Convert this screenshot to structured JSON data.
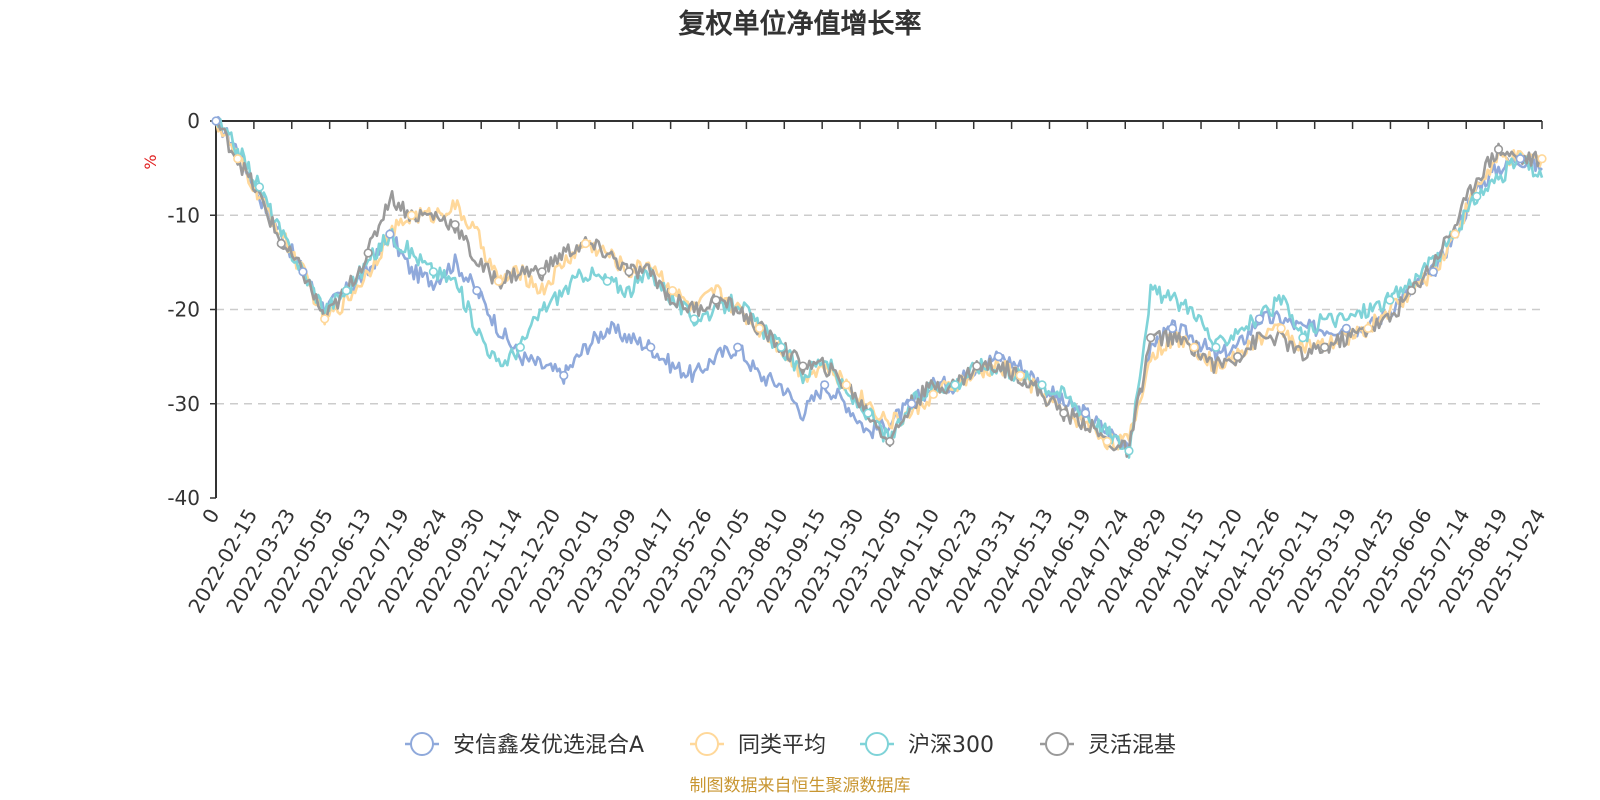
{
  "chart_data": {
    "type": "line",
    "title": "复权单位净值增长率",
    "ylabel": "%",
    "xlabel": "",
    "ylim": [
      -40,
      0
    ],
    "yticks": [
      0,
      -10,
      -20,
      -30,
      -40
    ],
    "ytick_labels": [
      "0",
      "-10",
      "-20",
      "-30",
      "-40"
    ],
    "grid": true,
    "legend_position": "bottom",
    "x_tick_labels": [
      "0",
      "2022-02-15",
      "2022-03-23",
      "2022-05-05",
      "2022-06-13",
      "2022-07-19",
      "2022-08-24",
      "2022-09-30",
      "2022-11-14",
      "2022-12-20",
      "2023-02-01",
      "2023-03-09",
      "2023-04-17",
      "2023-05-26",
      "2023-07-05",
      "2023-08-10",
      "2023-09-15",
      "2023-10-30",
      "2023-12-05",
      "2024-01-10",
      "2024-02-23",
      "2024-03-31",
      "2024-05-13",
      "2024-06-19",
      "2024-07-24",
      "2024-08-29",
      "2024-10-15",
      "2024-11-20",
      "2024-12-26",
      "2025-02-11",
      "2025-03-19",
      "2025-04-25",
      "2025-06-06",
      "2025-07-14",
      "2025-08-19",
      "2025-10-24"
    ],
    "source_note": "制图数据来自恒生聚源数据库",
    "series": [
      {
        "name": "安信鑫发优选混合A",
        "color": "#8fa9db",
        "values": [
          0,
          -3,
          -8,
          -12,
          -16,
          -20,
          -18,
          -16,
          -12,
          -16,
          -17,
          -15,
          -18,
          -22,
          -25,
          -26,
          -27,
          -24,
          -22,
          -23,
          -24,
          -26,
          -27,
          -25,
          -24,
          -27,
          -28,
          -31,
          -28,
          -30,
          -33,
          -32,
          -30,
          -28,
          -28,
          -26,
          -25,
          -26,
          -28,
          -30,
          -31,
          -33,
          -34,
          -24,
          -22,
          -23,
          -25,
          -24,
          -21,
          -21,
          -22,
          -22,
          -22,
          -22,
          -20,
          -18,
          -16,
          -12,
          -7,
          -5,
          -4,
          -5
        ]
      },
      {
        "name": "同类平均",
        "color": "#ffd89a",
        "values": [
          0,
          -4,
          -8,
          -12,
          -16,
          -21,
          -19,
          -16,
          -12,
          -10,
          -10,
          -9,
          -12,
          -17,
          -16,
          -18,
          -15,
          -13,
          -14,
          -16,
          -15,
          -18,
          -20,
          -18,
          -20,
          -22,
          -24,
          -27,
          -26,
          -28,
          -30,
          -32,
          -31,
          -29,
          -28,
          -27,
          -26,
          -27,
          -29,
          -31,
          -32,
          -34,
          -34,
          -25,
          -23,
          -24,
          -26,
          -25,
          -23,
          -22,
          -24,
          -24,
          -23,
          -22,
          -20,
          -18,
          -16,
          -12,
          -7,
          -4,
          -4,
          -4
        ]
      },
      {
        "name": "沪深300",
        "color": "#7fd3d8",
        "values": [
          0,
          -3,
          -7,
          -12,
          -16,
          -20,
          -18,
          -15,
          -12,
          -14,
          -16,
          -17,
          -22,
          -26,
          -24,
          -20,
          -18,
          -16,
          -17,
          -18,
          -16,
          -19,
          -21,
          -20,
          -19,
          -22,
          -24,
          -27,
          -25,
          -29,
          -31,
          -34,
          -30,
          -28,
          -28,
          -26,
          -26,
          -27,
          -28,
          -29,
          -31,
          -33,
          -35,
          -18,
          -19,
          -20,
          -24,
          -22,
          -21,
          -19,
          -23,
          -21,
          -21,
          -20,
          -19,
          -17,
          -15,
          -12,
          -8,
          -6,
          -4,
          -6
        ]
      },
      {
        "name": "灵活混基",
        "color": "#9a9a9a",
        "values": [
          0,
          -4,
          -8,
          -13,
          -16,
          -21,
          -18,
          -14,
          -8,
          -10,
          -10,
          -11,
          -15,
          -17,
          -16,
          -16,
          -14,
          -13,
          -14,
          -16,
          -16,
          -19,
          -20,
          -19,
          -20,
          -22,
          -24,
          -26,
          -26,
          -28,
          -31,
          -34,
          -30,
          -28,
          -28,
          -26,
          -26,
          -27,
          -29,
          -31,
          -32,
          -34,
          -35,
          -23,
          -23,
          -24,
          -26,
          -25,
          -23,
          -23,
          -25,
          -24,
          -23,
          -22,
          -21,
          -18,
          -15,
          -11,
          -6,
          -3,
          -4,
          -4
        ]
      }
    ]
  }
}
